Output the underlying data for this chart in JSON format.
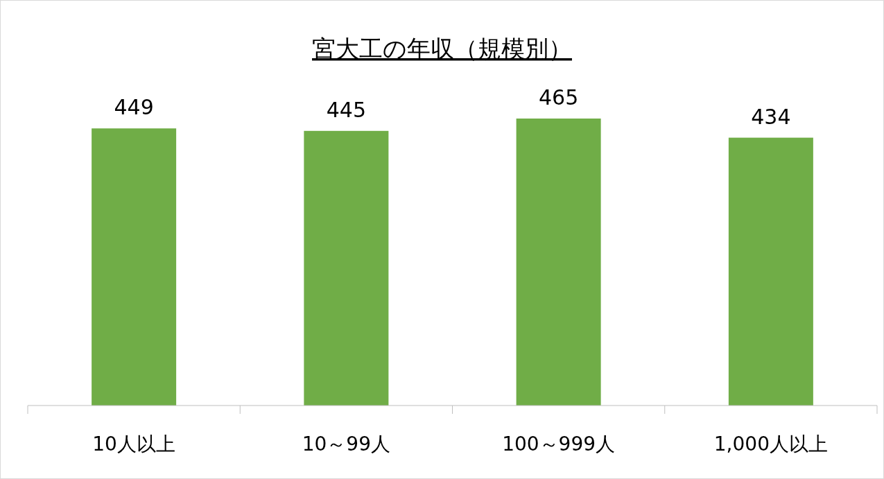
{
  "chart_data": {
    "type": "bar",
    "title": "宮大工の年収（規模別）",
    "categories": [
      "10人以上",
      "10～99人",
      "100～999人",
      "1,000人以上"
    ],
    "values": [
      449,
      445,
      465,
      434
    ],
    "color": "#70ad47",
    "data_labels": true
  }
}
